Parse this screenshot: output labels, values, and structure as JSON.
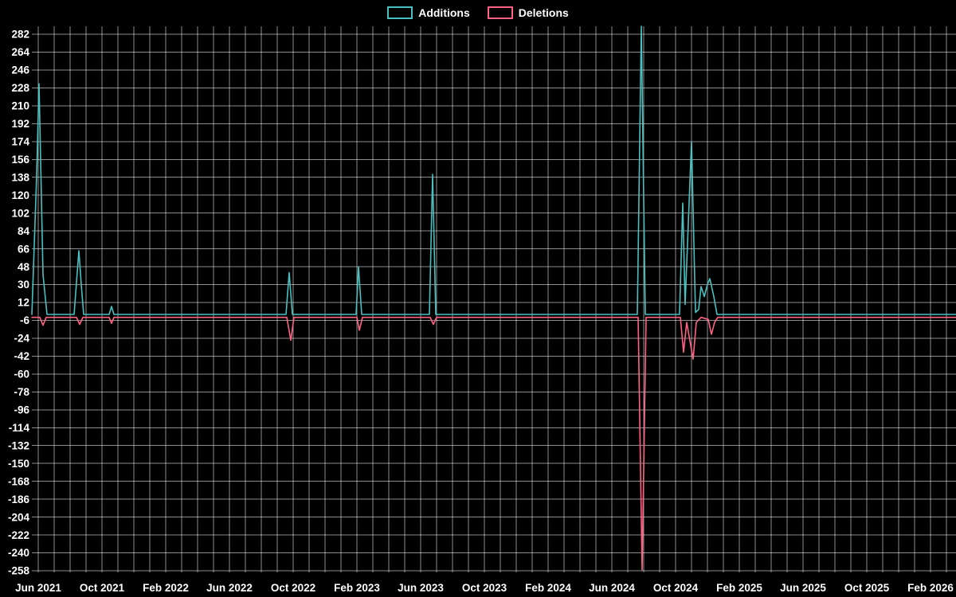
{
  "legend": {
    "additions_label": "Additions",
    "deletions_label": "Deletions"
  },
  "colors": {
    "background": "#000000",
    "grid": "rgba(255,255,255,0.55)",
    "text": "#ffffff",
    "additions": "#4bc0c0",
    "deletions": "#ff6384"
  },
  "chart_data": {
    "type": "line",
    "legend_position": "top",
    "grid": true,
    "x_unit": "months since Jun 2021",
    "xlim": [
      -0.4,
      57.6
    ],
    "ylim": [
      -258,
      290
    ],
    "x_ticks": [
      {
        "month": 0,
        "label": "Jun 2021"
      },
      {
        "month": 4,
        "label": "Oct 2021"
      },
      {
        "month": 8,
        "label": "Feb 2022"
      },
      {
        "month": 12,
        "label": "Jun 2022"
      },
      {
        "month": 16,
        "label": "Oct 2022"
      },
      {
        "month": 20,
        "label": "Feb 2023"
      },
      {
        "month": 24,
        "label": "Jun 2023"
      },
      {
        "month": 28,
        "label": "Oct 2023"
      },
      {
        "month": 32,
        "label": "Feb 2024"
      },
      {
        "month": 36,
        "label": "Jun 2024"
      },
      {
        "month": 40,
        "label": "Oct 2024"
      },
      {
        "month": 44,
        "label": "Feb 2025"
      },
      {
        "month": 48,
        "label": "Jun 2025"
      },
      {
        "month": 52,
        "label": "Oct 2025"
      },
      {
        "month": 56,
        "label": "Feb 2026"
      }
    ],
    "y_ticks": [
      282,
      264,
      246,
      228,
      210,
      192,
      174,
      156,
      138,
      120,
      102,
      84,
      66,
      48,
      30,
      12,
      -6,
      -24,
      -42,
      -60,
      -78,
      -96,
      -114,
      -132,
      -150,
      -168,
      -186,
      -204,
      -222,
      -240,
      -258
    ],
    "series": [
      {
        "name": "Additions",
        "color_key": "additions",
        "points": [
          [
            -0.4,
            0
          ],
          [
            -0.1,
            140
          ],
          [
            0.05,
            232
          ],
          [
            0.3,
            40
          ],
          [
            0.55,
            0
          ],
          [
            2.25,
            0
          ],
          [
            2.55,
            64
          ],
          [
            2.7,
            30
          ],
          [
            2.85,
            0
          ],
          [
            4.45,
            0
          ],
          [
            4.6,
            8
          ],
          [
            4.75,
            0
          ],
          [
            15.55,
            0
          ],
          [
            15.75,
            42
          ],
          [
            15.95,
            0
          ],
          [
            19.95,
            0
          ],
          [
            20.1,
            48
          ],
          [
            20.3,
            0
          ],
          [
            24.55,
            0
          ],
          [
            24.75,
            141
          ],
          [
            24.95,
            0
          ],
          [
            37.6,
            0
          ],
          [
            37.85,
            290
          ],
          [
            38.1,
            0
          ],
          [
            40.25,
            0
          ],
          [
            40.45,
            112
          ],
          [
            40.6,
            10
          ],
          [
            41.0,
            174
          ],
          [
            41.25,
            2
          ],
          [
            41.45,
            5
          ],
          [
            41.6,
            28
          ],
          [
            41.8,
            18
          ],
          [
            42.0,
            30
          ],
          [
            42.15,
            36
          ],
          [
            42.4,
            18
          ],
          [
            42.6,
            0
          ],
          [
            57.6,
            0
          ]
        ]
      },
      {
        "name": "Deletions",
        "color_key": "deletions",
        "points": [
          [
            -0.4,
            -3
          ],
          [
            0.1,
            -3
          ],
          [
            0.3,
            -11
          ],
          [
            0.5,
            -3
          ],
          [
            2.4,
            -3
          ],
          [
            2.6,
            -10
          ],
          [
            2.8,
            -3
          ],
          [
            4.45,
            -3
          ],
          [
            4.6,
            -9
          ],
          [
            4.75,
            -3
          ],
          [
            15.6,
            -3
          ],
          [
            15.85,
            -26
          ],
          [
            16.05,
            -3
          ],
          [
            20.0,
            -3
          ],
          [
            20.15,
            -16
          ],
          [
            20.35,
            -3
          ],
          [
            24.6,
            -3
          ],
          [
            24.8,
            -10
          ],
          [
            25.0,
            -3
          ],
          [
            37.65,
            -3
          ],
          [
            37.9,
            -257
          ],
          [
            38.15,
            -3
          ],
          [
            40.3,
            -3
          ],
          [
            40.5,
            -38
          ],
          [
            40.7,
            -8
          ],
          [
            41.1,
            -45
          ],
          [
            41.3,
            -8
          ],
          [
            41.6,
            -3
          ],
          [
            42.05,
            -5
          ],
          [
            42.25,
            -20
          ],
          [
            42.45,
            -8
          ],
          [
            42.65,
            -3
          ],
          [
            57.6,
            -3
          ]
        ]
      }
    ]
  }
}
